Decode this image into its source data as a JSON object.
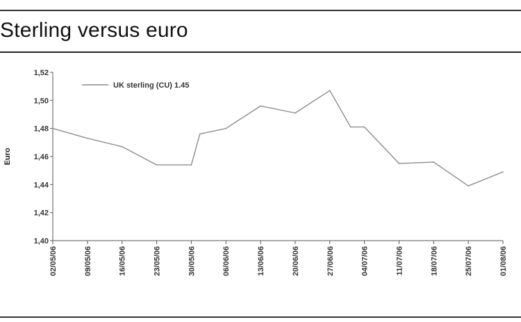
{
  "header": {
    "title": "Sterling versus euro"
  },
  "chart_data": {
    "type": "line",
    "ylabel": "Euro",
    "xlabel": "",
    "ylim": [
      1.4,
      1.52
    ],
    "yticks": [
      "1,52",
      "1,50",
      "1,48",
      "1,46",
      "1,44",
      "1,42",
      "1,40"
    ],
    "categories": [
      "02/05/06",
      "09/05/06",
      "16/05/06",
      "23/05/06",
      "30/05/06",
      "06/06/06",
      "13/06/06",
      "20/06/06",
      "27/06/06",
      "04/07/06",
      "11/07/06",
      "18/07/06",
      "25/07/06",
      "01/08/06"
    ],
    "legend_position": "top-left",
    "series": [
      {
        "name": "UK sterling (CU) 1.45",
        "color": "#8c8c8c",
        "x": [
          0,
          1,
          2,
          3,
          4,
          4.25,
          5,
          6,
          7,
          8,
          8.6,
          9,
          10,
          11,
          12,
          13
        ],
        "values": [
          1.48,
          1.473,
          1.467,
          1.454,
          1.454,
          1.476,
          1.48,
          1.496,
          1.491,
          1.507,
          1.481,
          1.481,
          1.455,
          1.456,
          1.439,
          1.449
        ]
      }
    ]
  }
}
